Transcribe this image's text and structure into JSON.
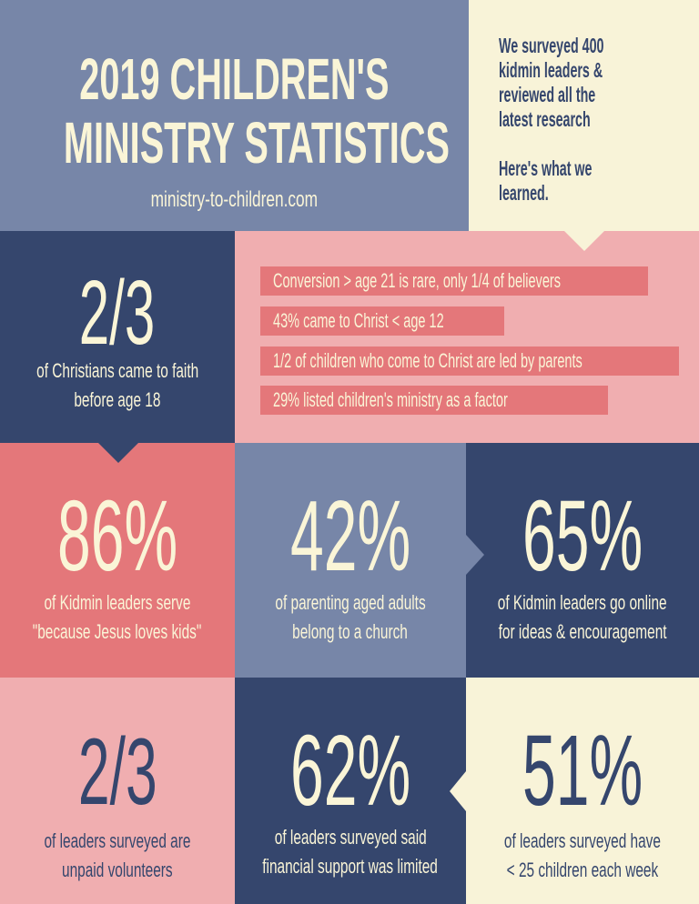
{
  "header": {
    "title_line1": "2019 CHILDREN'S",
    "title_line2": "MINISTRY STATISTICS",
    "website": "ministry-to-children.com",
    "intro_line1": "We surveyed 400",
    "intro_line2": "kidmin leaders &",
    "intro_line3": "reviewed all the",
    "intro_line4": "latest research",
    "intro_line5": "Here's what we",
    "intro_line6": "learned."
  },
  "stat_faith": {
    "value": "2/3",
    "caption_line1": "of Christians came to faith",
    "caption_line2": "before age 18"
  },
  "facts": [
    "Conversion > age 21 is rare, only 1/4 of believers",
    "43% came to Christ < age 12",
    "1/2 of children who come to Christ are led by parents",
    "29% listed children's ministry as a factor"
  ],
  "stats": [
    {
      "value": "86%",
      "caption_line1": "of Kidmin leaders serve",
      "caption_line2": "\"because Jesus loves kids\""
    },
    {
      "value": "42%",
      "caption_line1": "of parenting aged adults",
      "caption_line2": "belong to a church"
    },
    {
      "value": "65%",
      "caption_line1": "of Kidmin leaders go online",
      "caption_line2": "for ideas & encouragement"
    },
    {
      "value": "2/3",
      "caption_line1": "of leaders surveyed are",
      "caption_line2": "unpaid volunteers"
    },
    {
      "value": "62%",
      "caption_line1": "of leaders surveyed said",
      "caption_line2": "financial support was limited"
    },
    {
      "value": "51%",
      "caption_line1": "of leaders surveyed have",
      "caption_line2": "< 25 children each week"
    }
  ],
  "colors": {
    "navy": "#35466d",
    "slate": "#7786a8",
    "coral": "#e4777a",
    "pink": "#f0aeb0",
    "cream": "#f8f3d8",
    "text_light": "#faf5d7"
  }
}
